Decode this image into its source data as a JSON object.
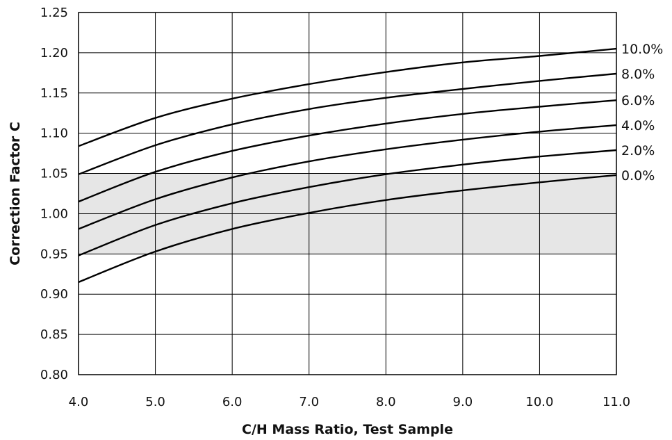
{
  "chart_data": {
    "type": "line",
    "xlabel": "C/H Mass Ratio, Test Sample",
    "ylabel": "Correction Factor C",
    "xlim": [
      4.0,
      11.0
    ],
    "ylim": [
      0.8,
      1.25
    ],
    "x_ticks": [
      "4.0",
      "5.0",
      "6.0",
      "7.0",
      "8.0",
      "9.0",
      "10.0",
      "11.0"
    ],
    "y_ticks": [
      "0.80",
      "0.85",
      "0.90",
      "0.95",
      "1.00",
      "1.05",
      "1.10",
      "1.15",
      "1.20",
      "1.25"
    ],
    "grid": true,
    "shaded_band": [
      0.95,
      1.05
    ],
    "series_colors": {
      "line": "#000000",
      "band": "#e6e6e6"
    },
    "x": [
      4.0,
      5.0,
      6.0,
      7.0,
      8.0,
      9.0,
      10.0,
      11.0
    ],
    "series": [
      {
        "name": "10.0%",
        "values": [
          1.084,
          1.119,
          1.143,
          1.161,
          1.176,
          1.188,
          1.196,
          1.205
        ]
      },
      {
        "name": "8.0%",
        "values": [
          1.049,
          1.085,
          1.111,
          1.13,
          1.144,
          1.155,
          1.165,
          1.174
        ]
      },
      {
        "name": "6.0%",
        "values": [
          1.015,
          1.052,
          1.078,
          1.097,
          1.112,
          1.124,
          1.133,
          1.141
        ]
      },
      {
        "name": "4.0%",
        "values": [
          0.981,
          1.018,
          1.045,
          1.065,
          1.08,
          1.092,
          1.102,
          1.11
        ]
      },
      {
        "name": "2.0%",
        "values": [
          0.948,
          0.986,
          1.013,
          1.033,
          1.049,
          1.061,
          1.071,
          1.079
        ]
      },
      {
        "name": "0.0%",
        "values": [
          0.915,
          0.953,
          0.981,
          1.001,
          1.017,
          1.029,
          1.039,
          1.048
        ]
      }
    ]
  }
}
